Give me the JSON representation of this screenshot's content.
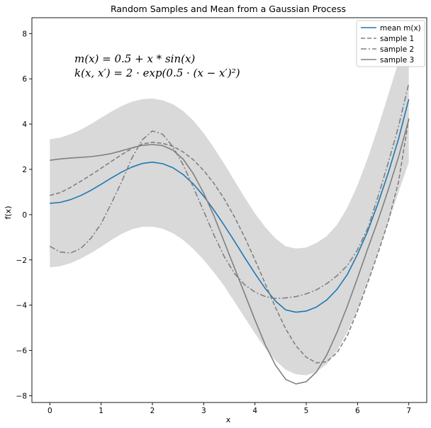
{
  "chart_data": {
    "type": "line",
    "title": "Random Samples and Mean from a Gaussian Process",
    "xlabel": "x",
    "ylabel": "f(x)",
    "xlim": [
      -0.35,
      7.35
    ],
    "ylim": [
      -8.3,
      8.7
    ],
    "xticks": [
      0,
      1,
      2,
      3,
      4,
      5,
      6,
      7
    ],
    "yticks": [
      -8,
      -6,
      -4,
      -2,
      0,
      2,
      4,
      6,
      8
    ],
    "xtick_labels": [
      "0",
      "1",
      "2",
      "3",
      "4",
      "5",
      "6",
      "7"
    ],
    "ytick_labels": [
      "−8",
      "−6",
      "−4",
      "−2",
      "0",
      "2",
      "4",
      "6",
      "8"
    ],
    "legend_position": "top-right",
    "annotations": [
      "m(x) = 0.5 + x * sin(x)",
      "k(x, x′) = 2 · exp(0.5 · (x − x′)²)"
    ],
    "x": [
      0,
      0.2,
      0.4,
      0.6,
      0.8,
      1.0,
      1.2,
      1.4,
      1.6,
      1.8,
      2.0,
      2.2,
      2.4,
      2.6,
      2.8,
      3.0,
      3.2,
      3.4,
      3.6,
      3.8,
      4.0,
      4.2,
      4.4,
      4.6,
      4.8,
      5.0,
      5.2,
      5.4,
      5.6,
      5.8,
      6.0,
      6.2,
      6.4,
      6.6,
      6.8,
      7.0
    ],
    "band": {
      "name": "confidence band",
      "color": "#d9d9d9",
      "lower": [
        -2.33,
        -2.28,
        -2.15,
        -1.95,
        -1.7,
        -1.42,
        -1.12,
        -0.85,
        -0.65,
        -0.54,
        -0.53,
        -0.62,
        -0.82,
        -1.12,
        -1.52,
        -2.0,
        -2.55,
        -3.15,
        -3.85,
        -4.55,
        -5.25,
        -5.9,
        -6.45,
        -6.85,
        -7.05,
        -7.1,
        -6.95,
        -6.6,
        -6.0,
        -5.2,
        -4.2,
        -3.0,
        -1.7,
        -0.35,
        1.0,
        2.3
      ],
      "upper": [
        3.33,
        3.4,
        3.55,
        3.75,
        4.0,
        4.28,
        4.55,
        4.8,
        4.99,
        5.1,
        5.13,
        5.05,
        4.88,
        4.58,
        4.15,
        3.6,
        2.95,
        2.25,
        1.5,
        0.75,
        0.05,
        -0.55,
        -1.05,
        -1.4,
        -1.5,
        -1.45,
        -1.25,
        -0.95,
        -0.45,
        0.3,
        1.3,
        2.5,
        3.85,
        5.3,
        6.75,
        8.2
      ]
    },
    "series": [
      {
        "name": "mean m(x)",
        "color": "#1f77b4",
        "style": "solid",
        "values": [
          0.5,
          0.54,
          0.66,
          0.84,
          1.07,
          1.34,
          1.62,
          1.88,
          2.1,
          2.26,
          2.32,
          2.25,
          2.07,
          1.77,
          1.35,
          0.82,
          0.2,
          -0.47,
          -1.17,
          -1.9,
          -2.6,
          -3.26,
          -3.82,
          -4.21,
          -4.31,
          -4.26,
          -4.08,
          -3.77,
          -3.3,
          -2.65,
          -1.75,
          -0.72,
          0.5,
          1.85,
          3.35,
          5.1
        ]
      },
      {
        "name": "sample 1",
        "color": "#808080",
        "style": "dashed",
        "values": [
          0.85,
          0.97,
          1.2,
          1.47,
          1.75,
          2.05,
          2.35,
          2.65,
          2.92,
          3.12,
          3.2,
          3.15,
          3.02,
          2.77,
          2.42,
          1.95,
          1.38,
          0.7,
          -0.1,
          -1.0,
          -2.0,
          -3.05,
          -4.1,
          -5.05,
          -5.8,
          -6.3,
          -6.55,
          -6.5,
          -6.1,
          -5.35,
          -4.25,
          -3.0,
          -1.7,
          -0.3,
          1.45,
          4.25
        ]
      },
      {
        "name": "sample 2",
        "color": "#808080",
        "style": "dashdot",
        "values": [
          -1.4,
          -1.65,
          -1.7,
          -1.5,
          -1.05,
          -0.4,
          0.5,
          1.45,
          2.5,
          3.3,
          3.7,
          3.55,
          3.0,
          2.2,
          1.2,
          0.15,
          -0.9,
          -1.85,
          -2.6,
          -3.1,
          -3.42,
          -3.62,
          -3.7,
          -3.68,
          -3.62,
          -3.5,
          -3.32,
          -3.05,
          -2.7,
          -2.25,
          -1.55,
          -0.6,
          0.8,
          2.3,
          3.9,
          5.8
        ]
      },
      {
        "name": "sample 3",
        "color": "#808080",
        "style": "solid",
        "values": [
          2.4,
          2.46,
          2.5,
          2.53,
          2.56,
          2.62,
          2.7,
          2.82,
          2.95,
          3.06,
          3.1,
          3.05,
          2.85,
          2.45,
          1.8,
          0.95,
          -0.05,
          -1.2,
          -2.35,
          -3.5,
          -4.65,
          -5.75,
          -6.65,
          -7.28,
          -7.48,
          -7.38,
          -6.95,
          -6.2,
          -5.2,
          -4.05,
          -2.8,
          -1.5,
          -0.25,
          1.1,
          2.55,
          4.2
        ]
      }
    ]
  }
}
